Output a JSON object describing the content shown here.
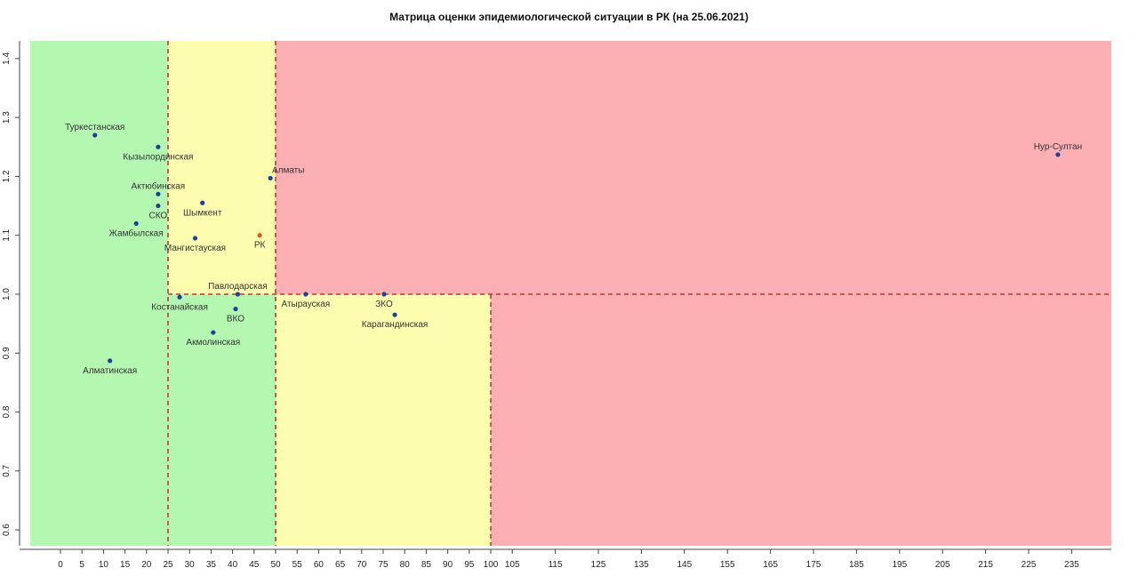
{
  "chart_data": {
    "type": "scatter",
    "title": "Матрица оценки эпидемиологической ситуации в РК (на 25.06.2021)",
    "xlabel": "",
    "ylabel": "",
    "xlim": [
      -7,
      247
    ],
    "ylim": [
      0.573,
      1.43
    ],
    "x_scale": "piecewise-linear (0–100 step 5, 100–245 step 10)",
    "x_ticks": [
      0,
      5,
      10,
      15,
      20,
      25,
      30,
      35,
      40,
      45,
      50,
      55,
      60,
      65,
      70,
      75,
      80,
      85,
      90,
      95,
      100,
      105,
      115,
      125,
      135,
      145,
      155,
      165,
      175,
      185,
      195,
      205,
      215,
      225,
      235
    ],
    "y_ticks": [
      0.6,
      0.7,
      0.8,
      0.9,
      1.0,
      1.1,
      1.2,
      1.3,
      1.4
    ],
    "y_tick_labels": [
      "0.6",
      "0.7",
      "0.8",
      "0.9",
      "1.0",
      "1.1",
      "1.2",
      "1.3",
      "1.4"
    ],
    "grid": false,
    "reference_lines": {
      "x": [
        25,
        50
      ],
      "y": 1.0,
      "color": "#cc3333",
      "style": "dashed"
    },
    "zones": [
      {
        "x": [
          -7,
          25
        ],
        "y": [
          0.573,
          1.43
        ],
        "color": "#b3f7b0"
      },
      {
        "x": [
          25,
          50
        ],
        "y": [
          1.0,
          1.43
        ],
        "color": "#fdfdb0"
      },
      {
        "x": [
          25,
          50
        ],
        "y": [
          0.573,
          1.0
        ],
        "color": "#b3f7b0"
      },
      {
        "x": [
          50,
          247
        ],
        "y": [
          1.0,
          1.43
        ],
        "color": "#fdb0b3"
      },
      {
        "x": [
          50,
          100
        ],
        "y": [
          0.573,
          1.0
        ],
        "color": "#fdfdb0"
      },
      {
        "x": [
          100,
          247
        ],
        "y": [
          0.573,
          1.0
        ],
        "color": "#fdb0b3"
      }
    ],
    "points": [
      {
        "label": "Туркестанская",
        "x": 8,
        "y": 1.27,
        "color": "#1f3fa0",
        "anchor": "middle",
        "pos": "above"
      },
      {
        "label": "Кызылординская",
        "x": 22.7,
        "y": 1.25,
        "color": "#1f3fa0",
        "anchor": "middle",
        "pos": "below"
      },
      {
        "label": "Алматы",
        "x": 48.8,
        "y": 1.197,
        "color": "#1f3fa0",
        "anchor": "end",
        "pos": "above"
      },
      {
        "label": "Актюбинская",
        "x": 22.7,
        "y": 1.17,
        "color": "#1f3fa0",
        "anchor": "middle",
        "pos": "above"
      },
      {
        "label": "Шымкент",
        "x": 33,
        "y": 1.155,
        "color": "#1f3fa0",
        "anchor": "middle",
        "pos": "below"
      },
      {
        "label": "СКО",
        "x": 22.7,
        "y": 1.15,
        "color": "#1f3fa0",
        "anchor": "middle",
        "pos": "below"
      },
      {
        "label": "Жамбылская",
        "x": 17.6,
        "y": 1.12,
        "color": "#1f3fa0",
        "anchor": "middle",
        "pos": "below"
      },
      {
        "label": "Мангистауская",
        "x": 31.3,
        "y": 1.095,
        "color": "#1f3fa0",
        "anchor": "middle",
        "pos": "below"
      },
      {
        "label": "РК",
        "x": 46.3,
        "y": 1.1,
        "color": "#e8541c",
        "anchor": "middle",
        "pos": "below"
      },
      {
        "label": "Павлодарская",
        "x": 41.2,
        "y": 1.0,
        "color": "#1f3fa0",
        "anchor": "middle",
        "pos": "above"
      },
      {
        "label": "Костанайская",
        "x": 27.7,
        "y": 0.995,
        "color": "#1f3fa0",
        "anchor": "middle",
        "pos": "below"
      },
      {
        "label": "ВКО",
        "x": 40.7,
        "y": 0.975,
        "color": "#1f3fa0",
        "anchor": "middle",
        "pos": "below"
      },
      {
        "label": "Атырауская",
        "x": 57,
        "y": 1.0,
        "color": "#1f3fa0",
        "anchor": "middle",
        "pos": "below"
      },
      {
        "label": "ЗКО",
        "x": 75.2,
        "y": 1.0,
        "color": "#1f3fa0",
        "anchor": "middle",
        "pos": "below"
      },
      {
        "label": "Карагандинская",
        "x": 77.7,
        "y": 0.965,
        "color": "#1f3fa0",
        "anchor": "middle",
        "pos": "below"
      },
      {
        "label": "Акмолинская",
        "x": 35.5,
        "y": 0.935,
        "color": "#1f3fa0",
        "anchor": "middle",
        "pos": "below"
      },
      {
        "label": "Алматинская",
        "x": 11.5,
        "y": 0.887,
        "color": "#1f3fa0",
        "anchor": "middle",
        "pos": "below"
      },
      {
        "label": "Нур-Султан",
        "x": 231.8,
        "y": 1.237,
        "color": "#1f3fa0",
        "anchor": "middle",
        "pos": "above"
      }
    ]
  }
}
